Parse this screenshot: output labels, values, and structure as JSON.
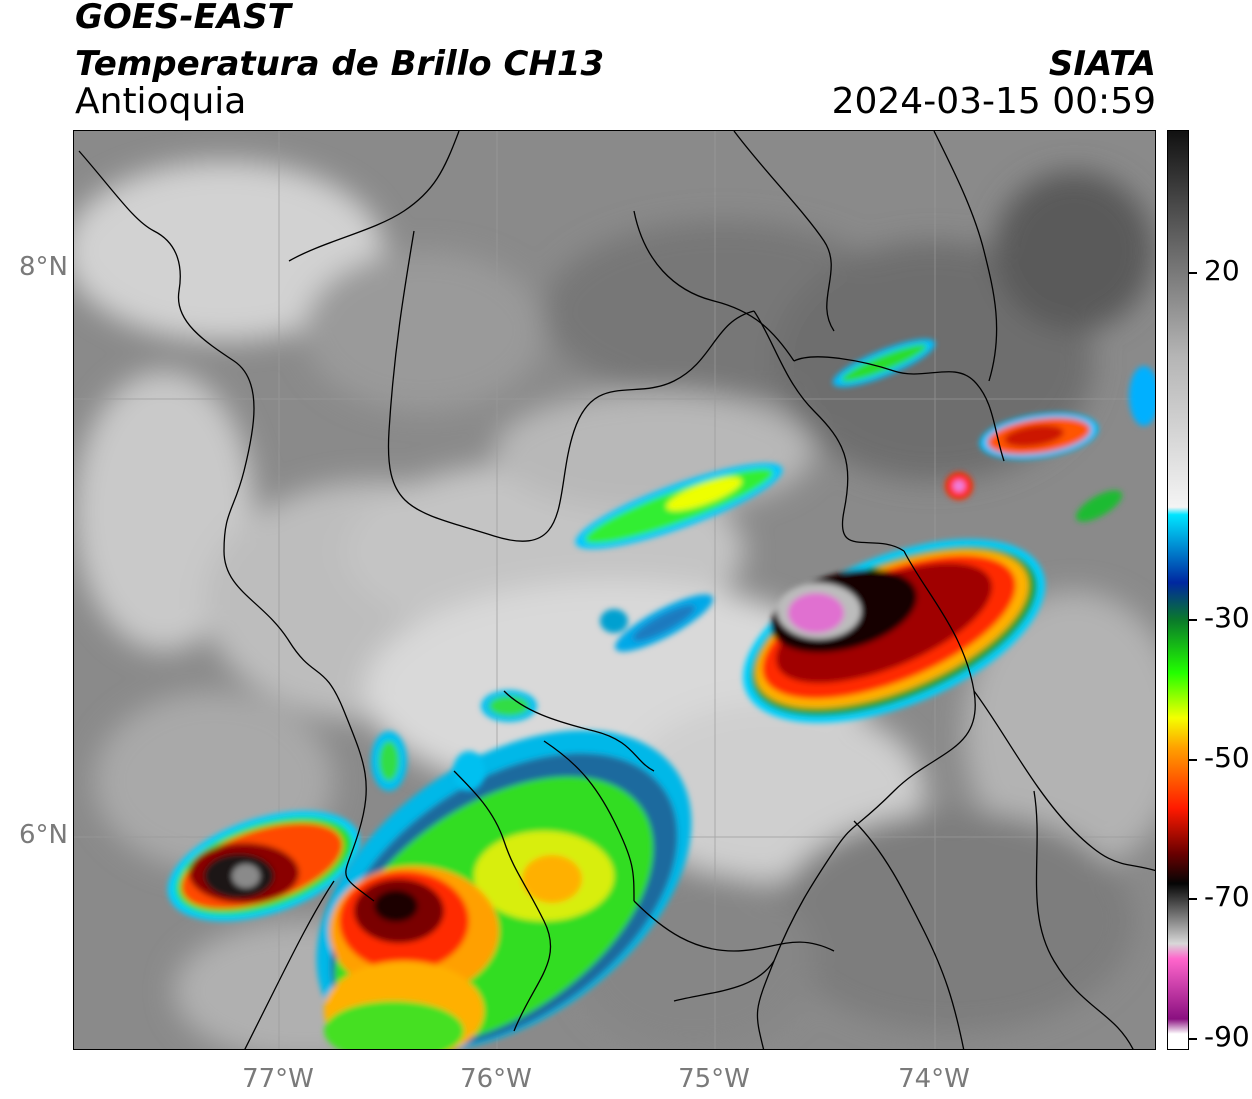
{
  "header": {
    "title_line1": "GOES-EAST",
    "title_line2": "Temperatura de Brillo CH13",
    "subtitle": "Antioquia",
    "organization": "SIATA",
    "datetime": "2024-03-15 00:59"
  },
  "map": {
    "lat_labels": [
      "8°N",
      "6°N"
    ],
    "lon_labels": [
      "77°W",
      "76°W",
      "75°W",
      "74°W"
    ],
    "background": "satellite infrared brightness temperature"
  },
  "colorbar": {
    "tick_labels": [
      "20",
      "-30",
      "-50",
      "-70",
      "-90"
    ],
    "stops": [
      {
        "value": 30,
        "color": "#111111"
      },
      {
        "value": 20,
        "color": "#4a4a4a"
      },
      {
        "value": 0,
        "color": "#b5b5b5"
      },
      {
        "value": -20,
        "color": "#f4f4f4"
      },
      {
        "value": -21,
        "color": "#00e5ff"
      },
      {
        "value": -30,
        "color": "#0027a0"
      },
      {
        "value": -35,
        "color": "#0a7a2a"
      },
      {
        "value": -42,
        "color": "#22ff00"
      },
      {
        "value": -48,
        "color": "#f4ff00"
      },
      {
        "value": -52,
        "color": "#ffa000"
      },
      {
        "value": -60,
        "color": "#ff1a00"
      },
      {
        "value": -66,
        "color": "#6a0000"
      },
      {
        "value": -70,
        "color": "#050505"
      },
      {
        "value": -78,
        "color": "#d8d8d8"
      },
      {
        "value": -80,
        "color": "#ff66cc"
      },
      {
        "value": -88,
        "color": "#8a1080"
      },
      {
        "value": -90,
        "color": "#ffffff"
      }
    ]
  }
}
